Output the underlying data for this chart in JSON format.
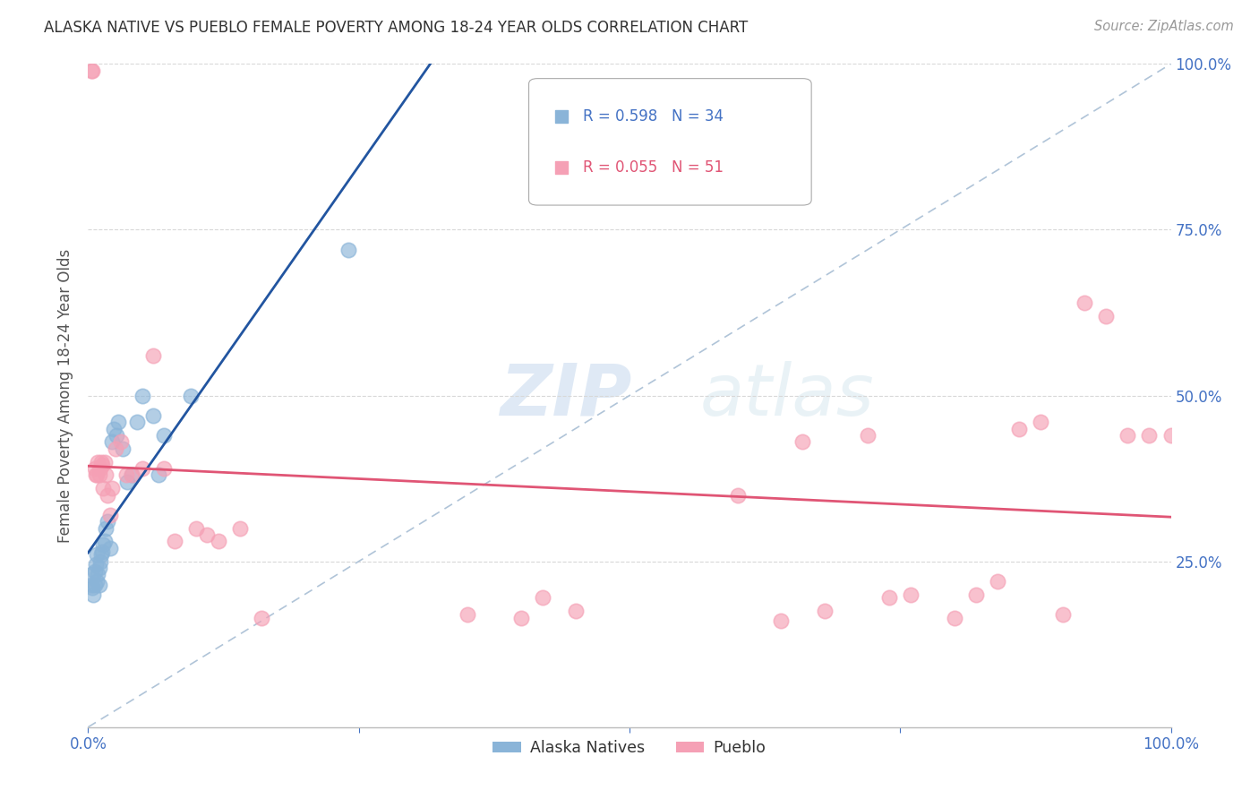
{
  "title": "ALASKA NATIVE VS PUEBLO FEMALE POVERTY AMONG 18-24 YEAR OLDS CORRELATION CHART",
  "source": "Source: ZipAtlas.com",
  "ylabel": "Female Poverty Among 18-24 Year Olds",
  "xlim": [
    0,
    1
  ],
  "ylim": [
    0,
    1
  ],
  "alaska_color": "#8ab4d8",
  "pueblo_color": "#f5a0b5",
  "alaska_line_color": "#2255a0",
  "pueblo_line_color": "#e05575",
  "diagonal_color": "#b0c4d8",
  "R_alaska": 0.598,
  "N_alaska": 34,
  "R_pueblo": 0.055,
  "N_pueblo": 51,
  "legend_label_alaska": "Alaska Natives",
  "legend_label_pueblo": "Pueblo",
  "alaska_x": [
    0.003,
    0.003,
    0.004,
    0.005,
    0.006,
    0.006,
    0.007,
    0.008,
    0.008,
    0.009,
    0.01,
    0.01,
    0.011,
    0.012,
    0.013,
    0.014,
    0.015,
    0.016,
    0.018,
    0.02,
    0.022,
    0.024,
    0.026,
    0.028,
    0.032,
    0.036,
    0.04,
    0.045,
    0.05,
    0.06,
    0.065,
    0.07,
    0.095,
    0.24
  ],
  "alaska_y": [
    0.215,
    0.23,
    0.21,
    0.2,
    0.215,
    0.235,
    0.245,
    0.22,
    0.26,
    0.23,
    0.215,
    0.24,
    0.25,
    0.26,
    0.265,
    0.275,
    0.28,
    0.3,
    0.31,
    0.27,
    0.43,
    0.45,
    0.44,
    0.46,
    0.42,
    0.37,
    0.38,
    0.46,
    0.5,
    0.47,
    0.38,
    0.44,
    0.5,
    0.72
  ],
  "pueblo_x": [
    0.003,
    0.004,
    0.006,
    0.007,
    0.008,
    0.009,
    0.01,
    0.011,
    0.012,
    0.013,
    0.014,
    0.015,
    0.016,
    0.018,
    0.02,
    0.022,
    0.025,
    0.03,
    0.035,
    0.04,
    0.05,
    0.06,
    0.07,
    0.08,
    0.1,
    0.11,
    0.12,
    0.14,
    0.16,
    0.35,
    0.4,
    0.42,
    0.45,
    0.6,
    0.64,
    0.66,
    0.68,
    0.72,
    0.74,
    0.76,
    0.8,
    0.82,
    0.84,
    0.86,
    0.88,
    0.9,
    0.92,
    0.94,
    0.96,
    0.98,
    1.0
  ],
  "pueblo_y": [
    0.99,
    0.99,
    0.39,
    0.38,
    0.38,
    0.4,
    0.38,
    0.39,
    0.4,
    0.395,
    0.36,
    0.4,
    0.38,
    0.35,
    0.32,
    0.36,
    0.42,
    0.43,
    0.38,
    0.38,
    0.39,
    0.56,
    0.39,
    0.28,
    0.3,
    0.29,
    0.28,
    0.3,
    0.165,
    0.17,
    0.165,
    0.195,
    0.175,
    0.35,
    0.16,
    0.43,
    0.175,
    0.44,
    0.195,
    0.2,
    0.165,
    0.2,
    0.22,
    0.45,
    0.46,
    0.17,
    0.64,
    0.62,
    0.44,
    0.44,
    0.44
  ],
  "watermark_text": "ZIPatlas",
  "background_color": "#ffffff",
  "grid_color": "#d8d8d8",
  "title_color": "#333333",
  "source_color": "#999999",
  "tick_color": "#4472c4",
  "ylabel_color": "#555555"
}
